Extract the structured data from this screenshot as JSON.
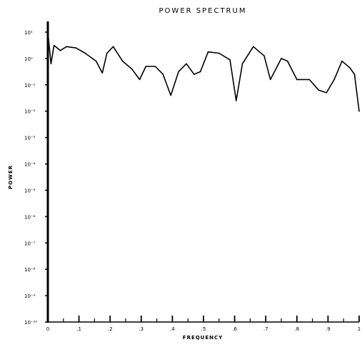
{
  "chart_data": {
    "type": "line",
    "title": "POWER SPECTRUM",
    "xlabel": "FREQUENCY",
    "ylabel": "POWER",
    "xlim": [
      0,
      1
    ],
    "ylim_exponent": [
      -10,
      1
    ],
    "y_scale": "log",
    "grid": false,
    "x_ticks": [
      {
        "value": 0.0,
        "label": "0"
      },
      {
        "value": 0.1,
        "label": ".1"
      },
      {
        "value": 0.2,
        "label": ".2"
      },
      {
        "value": 0.3,
        "label": ".3"
      },
      {
        "value": 0.4,
        "label": ".4"
      },
      {
        "value": 0.5,
        "label": ".5"
      },
      {
        "value": 0.6,
        "label": ".6"
      },
      {
        "value": 0.7,
        "label": ".7"
      },
      {
        "value": 0.8,
        "label": ".8"
      },
      {
        "value": 0.9,
        "label": ".9"
      },
      {
        "value": 1.0,
        "label": "1"
      }
    ],
    "y_ticks": [
      {
        "exponent": 1,
        "label": "10¹"
      },
      {
        "exponent": 0,
        "label": "10⁰"
      },
      {
        "exponent": -1,
        "label": "10⁻¹"
      },
      {
        "exponent": -2,
        "label": "10⁻²"
      },
      {
        "exponent": -3,
        "label": "10⁻³"
      },
      {
        "exponent": -4,
        "label": "10⁻⁴"
      },
      {
        "exponent": -5,
        "label": "10⁻⁵"
      },
      {
        "exponent": -6,
        "label": "10⁻⁶"
      },
      {
        "exponent": -7,
        "label": "10⁻⁷"
      },
      {
        "exponent": -8,
        "label": "10⁻⁸"
      },
      {
        "exponent": -9,
        "label": "10⁻⁹"
      },
      {
        "exponent": -10,
        "label": "10⁻¹⁰"
      }
    ],
    "series": [
      {
        "x": [
          0.0,
          0.01,
          0.02,
          0.04,
          0.06,
          0.09,
          0.12,
          0.155,
          0.175,
          0.19,
          0.21,
          0.24,
          0.27,
          0.295,
          0.315,
          0.345,
          0.37,
          0.395,
          0.42,
          0.445,
          0.47,
          0.49,
          0.515,
          0.55,
          0.585,
          0.605,
          0.625,
          0.66,
          0.695,
          0.715,
          0.75,
          0.77,
          0.8,
          0.84,
          0.87,
          0.895,
          0.92,
          0.945,
          0.97,
          0.985,
          1.0
        ],
        "log10_y": [
          1.0,
          -0.2,
          0.5,
          0.3,
          0.45,
          0.4,
          0.2,
          -0.1,
          -0.55,
          0.2,
          0.45,
          -0.1,
          -0.4,
          -0.8,
          -0.3,
          -0.3,
          -0.6,
          -1.4,
          -0.5,
          -0.2,
          -0.6,
          -0.5,
          0.25,
          0.2,
          -0.05,
          -1.6,
          -0.2,
          0.45,
          0.1,
          -0.8,
          0.0,
          -0.1,
          -0.8,
          -0.8,
          -1.2,
          -1.3,
          -0.8,
          -0.1,
          -0.35,
          -0.6,
          -2.0
        ]
      }
    ]
  }
}
